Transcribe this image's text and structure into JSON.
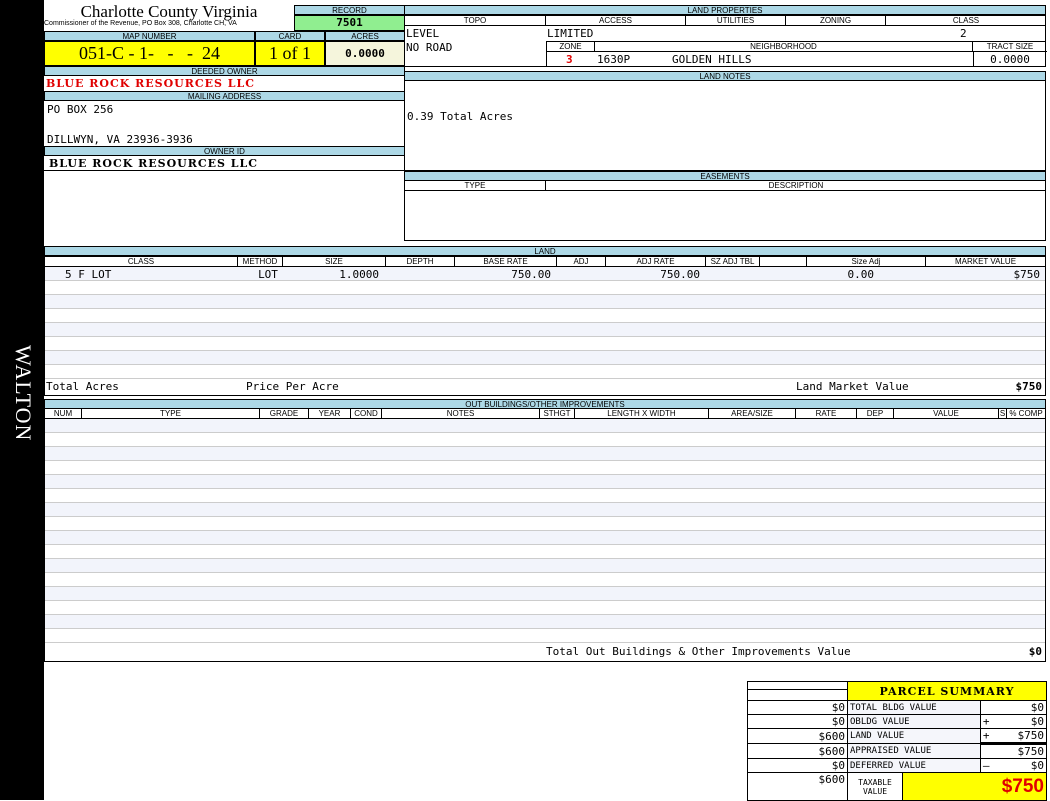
{
  "side_label": "WALTON",
  "header": {
    "county": "Charlotte County Virginia",
    "subtitle": "Commissioner of the Revenue, PO Box 308, Charlotte CH, VA",
    "record_label": "RECORD",
    "record": "7501",
    "map_number_label": "MAP NUMBER",
    "map_number": "051-C - 1-   -   -  24",
    "card_label": "CARD",
    "card": "1 of 1",
    "acres_label": "ACRES",
    "acres": "0.0000"
  },
  "owner": {
    "deeded_label": "DEEDED OWNER",
    "deeded": "BLUE ROCK RESOURCES LLC",
    "mailing_label": "MAILING ADDRESS",
    "address1": "PO BOX 256",
    "address2": "DILLWYN, VA 23936-3936",
    "owner_id_label": "OWNER ID",
    "owner_id": "BLUE ROCK RESOURCES LLC"
  },
  "land_properties": {
    "title": "LAND PROPERTIES",
    "topo_label": "TOPO",
    "access_label": "ACCESS",
    "utilities_label": "UTILITIES",
    "zoning_label": "ZONING",
    "class_label": "CLASS",
    "topo1": "LEVEL",
    "topo2": "NO ROAD",
    "access": "LIMITED",
    "class": "2",
    "zone_label": "ZONE",
    "neighborhood_label": "NEIGHBORHOOD",
    "tract_label": "TRACT SIZE",
    "zone": "3",
    "neighborhood_code": "1630P",
    "neighborhood": "GOLDEN HILLS",
    "tract": "0.0000"
  },
  "land_notes": {
    "title": "LAND NOTES",
    "text": "0.39 Total Acres"
  },
  "easements": {
    "title": "EASEMENTS",
    "type_label": "TYPE",
    "description_label": "DESCRIPTION"
  },
  "land": {
    "title": "LAND",
    "columns": [
      "CLASS",
      "METHOD",
      "SIZE",
      "DEPTH",
      "BASE RATE",
      "ADJ",
      "ADJ RATE",
      "SZ ADJ TBL",
      "",
      "Size Adj",
      "MARKET VALUE"
    ],
    "rows": [
      [
        "5 F LOT",
        "LOT",
        "1.0000",
        "",
        "750.00",
        "",
        "750.00",
        "",
        "",
        "0.00",
        "$750"
      ]
    ],
    "total_acres_label": "Total Acres",
    "price_per_acre_label": "Price Per Acre",
    "market_value_label": "Land Market Value",
    "market_value": "$750"
  },
  "outbuildings": {
    "title": "OUT BUILDINGS/OTHER IMPROVEMENTS",
    "columns": [
      "NUM",
      "TYPE",
      "GRADE",
      "YEAR",
      "COND",
      "NOTES",
      "STHGT",
      "LENGTH X WIDTH",
      "AREA/SIZE",
      "RATE",
      "DEP",
      "VALUE",
      "S",
      "% COMP"
    ],
    "rows": [],
    "total_label": "Total Out Buildings & Other Improvements Value",
    "total": "$0"
  },
  "parcel_summary": {
    "title": "PARCEL SUMMARY",
    "items": [
      {
        "prior": "$0",
        "label": "TOTAL BLDG VALUE",
        "op": "",
        "value": "$0"
      },
      {
        "prior": "$0",
        "label": "OBLDG VALUE",
        "op": "+",
        "value": "$0"
      },
      {
        "prior": "$600",
        "label": "LAND VALUE",
        "op": "+",
        "value": "$750"
      },
      {
        "prior": "$600",
        "label": "APPRAISED VALUE",
        "op": "",
        "value": "$750"
      },
      {
        "prior": "$0",
        "label": "DEFERRED VALUE",
        "op": "–",
        "value": "$0"
      }
    ],
    "taxable_prior": "$600",
    "taxable_label": "TAXABLE VALUE",
    "taxable": "$750"
  },
  "colors": {
    "header_blue": "#add8e6",
    "yellow": "#ffff00",
    "green": "#90ee90",
    "red": "#e00000"
  }
}
